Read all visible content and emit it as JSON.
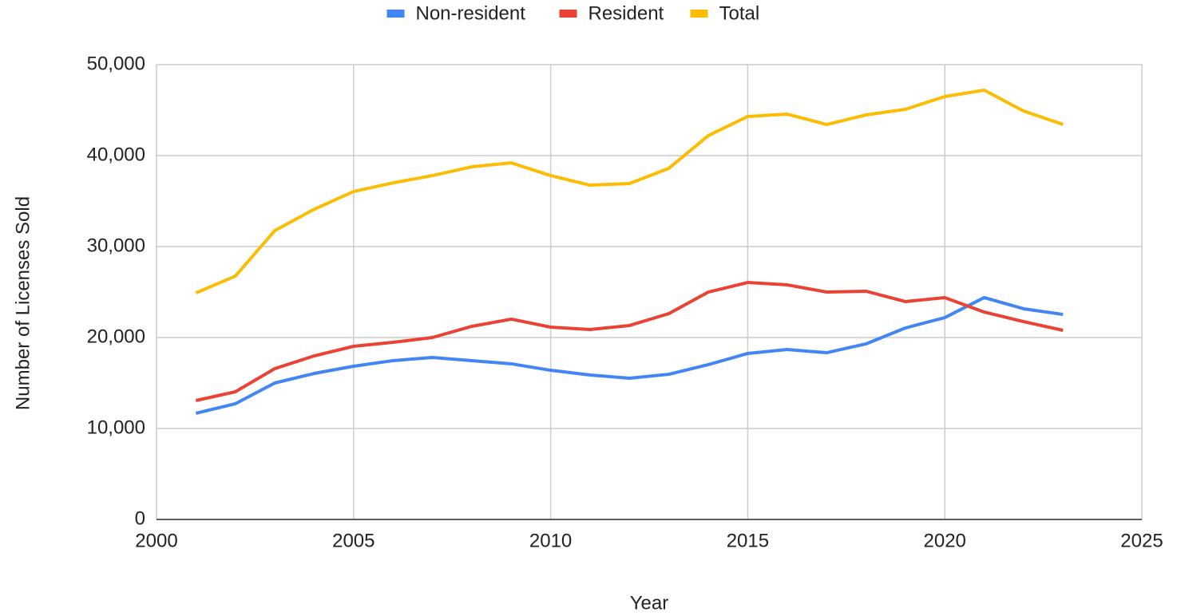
{
  "chart_data": {
    "type": "line",
    "x_label": "Year",
    "y_label": "Number of Licenses Sold",
    "x": [
      2001,
      2002,
      2003,
      2004,
      2005,
      2006,
      2007,
      2008,
      2009,
      2010,
      2011,
      2012,
      2013,
      2014,
      2015,
      2016,
      2017,
      2018,
      2019,
      2020,
      2021,
      2022,
      2023
    ],
    "series": [
      {
        "name": "Non-resident",
        "color": "#4285f4",
        "values": [
          11670,
          12720,
          15000,
          16050,
          16840,
          17460,
          17810,
          17460,
          17110,
          16400,
          15880,
          15530,
          15960,
          17020,
          18250,
          18680,
          18330,
          19300,
          21050,
          22190,
          24390,
          23160,
          22540
        ]
      },
      {
        "name": "Resident",
        "color": "#ea4335",
        "values": [
          13070,
          14035,
          16580,
          17980,
          19035,
          19470,
          20000,
          21230,
          22020,
          21140,
          20880,
          21320,
          22630,
          25000,
          26050,
          25790,
          25000,
          25090,
          23950,
          24390,
          22800,
          21750,
          20790
        ]
      },
      {
        "name": "Total",
        "color": "#fbbc04",
        "values": [
          24900,
          26750,
          31750,
          34100,
          36050,
          37000,
          37800,
          38770,
          39200,
          37800,
          36750,
          36930,
          38600,
          42200,
          44300,
          44560,
          43420,
          44470,
          45090,
          46490,
          47190,
          44900,
          43420
        ]
      }
    ],
    "xlim": [
      2000,
      2025
    ],
    "xticks": [
      2000,
      2005,
      2010,
      2015,
      2020,
      2025
    ],
    "ylim": [
      0,
      50000
    ],
    "yticks": [
      0,
      {
        "value": 10000,
        "label": "10,000"
      },
      {
        "value": 20000,
        "label": "20,000"
      },
      {
        "value": 30000,
        "label": "30,000"
      },
      {
        "value": 40000,
        "label": "40,000"
      },
      {
        "value": 50000,
        "label": "50,000"
      }
    ],
    "grid": true,
    "legend": "top"
  }
}
